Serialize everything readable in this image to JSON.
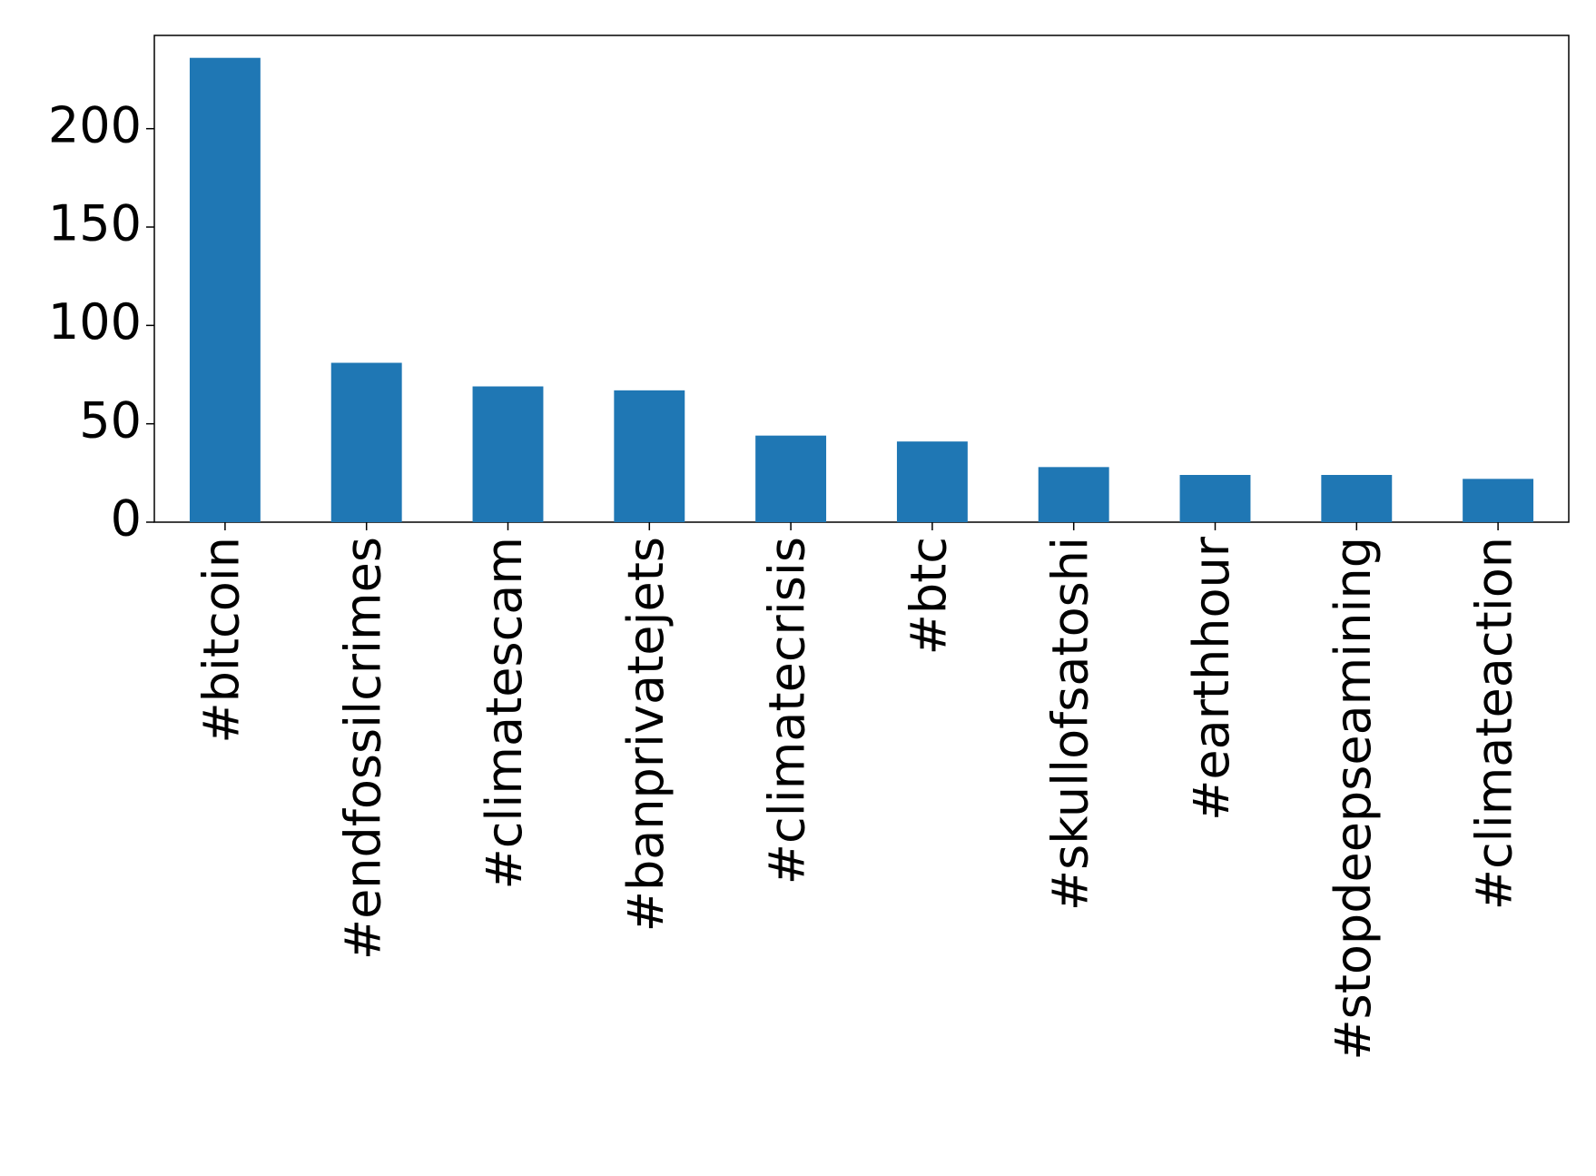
{
  "chart_data": {
    "type": "bar",
    "categories": [
      "#bitcoin",
      "#endfossilcrimes",
      "#climatescam",
      "#banprivatejets",
      "#climatecrisis",
      "#btc",
      "#skullofsatoshi",
      "#earthhour",
      "#stopdeepseamining",
      "#climateaction"
    ],
    "values": [
      236,
      81,
      69,
      67,
      44,
      41,
      28,
      24,
      24,
      22
    ],
    "color": "#1f77b4",
    "ylim": [
      0,
      247.4
    ],
    "yticks": [
      0,
      50,
      100,
      150,
      200
    ],
    "grid": false
  }
}
